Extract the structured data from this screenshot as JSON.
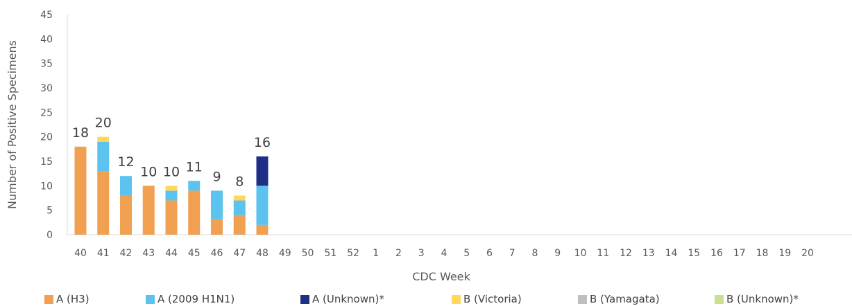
{
  "chart_data": {
    "type": "bar",
    "stacked": true,
    "xlabel": "CDC Week",
    "ylabel": "Number of Positive Specimens",
    "ylim": [
      0,
      45
    ],
    "yticks": [
      0,
      5,
      10,
      15,
      20,
      25,
      30,
      35,
      40,
      45
    ],
    "grid": false,
    "legend_position": "bottom",
    "categories": [
      "40",
      "41",
      "42",
      "43",
      "44",
      "45",
      "46",
      "47",
      "48",
      "49",
      "50",
      "51",
      "52",
      "1",
      "2",
      "3",
      "4",
      "5",
      "6",
      "7",
      "8",
      "9",
      "10",
      "11",
      "12",
      "13",
      "14",
      "15",
      "16",
      "17",
      "18",
      "19",
      "20"
    ],
    "series": [
      {
        "name": "A (H3)",
        "color": "#F0A050",
        "values": [
          18,
          13,
          8,
          10,
          7,
          9,
          3,
          4,
          2,
          0,
          0,
          0,
          0,
          0,
          0,
          0,
          0,
          0,
          0,
          0,
          0,
          0,
          0,
          0,
          0,
          0,
          0,
          0,
          0,
          0,
          0,
          0,
          0
        ]
      },
      {
        "name": "A (2009 H1N1)",
        "color": "#5BC3EE",
        "values": [
          0,
          6,
          4,
          0,
          2,
          2,
          6,
          3,
          8,
          0,
          0,
          0,
          0,
          0,
          0,
          0,
          0,
          0,
          0,
          0,
          0,
          0,
          0,
          0,
          0,
          0,
          0,
          0,
          0,
          0,
          0,
          0,
          0
        ]
      },
      {
        "name": "A (Unknown)*",
        "color": "#1F2F86",
        "values": [
          0,
          0,
          0,
          0,
          0,
          0,
          0,
          0,
          6,
          0,
          0,
          0,
          0,
          0,
          0,
          0,
          0,
          0,
          0,
          0,
          0,
          0,
          0,
          0,
          0,
          0,
          0,
          0,
          0,
          0,
          0,
          0,
          0
        ]
      },
      {
        "name": "B (Victoria)",
        "color": "#FFD75A",
        "values": [
          0,
          1,
          0,
          0,
          1,
          0,
          0,
          1,
          0,
          0,
          0,
          0,
          0,
          0,
          0,
          0,
          0,
          0,
          0,
          0,
          0,
          0,
          0,
          0,
          0,
          0,
          0,
          0,
          0,
          0,
          0,
          0,
          0
        ]
      },
      {
        "name": "B (Yamagata)",
        "color": "#BFBFBF",
        "values": [
          0,
          0,
          0,
          0,
          0,
          0,
          0,
          0,
          0,
          0,
          0,
          0,
          0,
          0,
          0,
          0,
          0,
          0,
          0,
          0,
          0,
          0,
          0,
          0,
          0,
          0,
          0,
          0,
          0,
          0,
          0,
          0,
          0
        ]
      },
      {
        "name": "B (Unknown)*",
        "color": "#C9E08F",
        "values": [
          0,
          0,
          0,
          0,
          0,
          0,
          0,
          0,
          0,
          0,
          0,
          0,
          0,
          0,
          0,
          0,
          0,
          0,
          0,
          0,
          0,
          0,
          0,
          0,
          0,
          0,
          0,
          0,
          0,
          0,
          0,
          0,
          0
        ]
      }
    ],
    "totals": [
      18,
      20,
      12,
      10,
      10,
      11,
      9,
      8,
      16
    ]
  }
}
